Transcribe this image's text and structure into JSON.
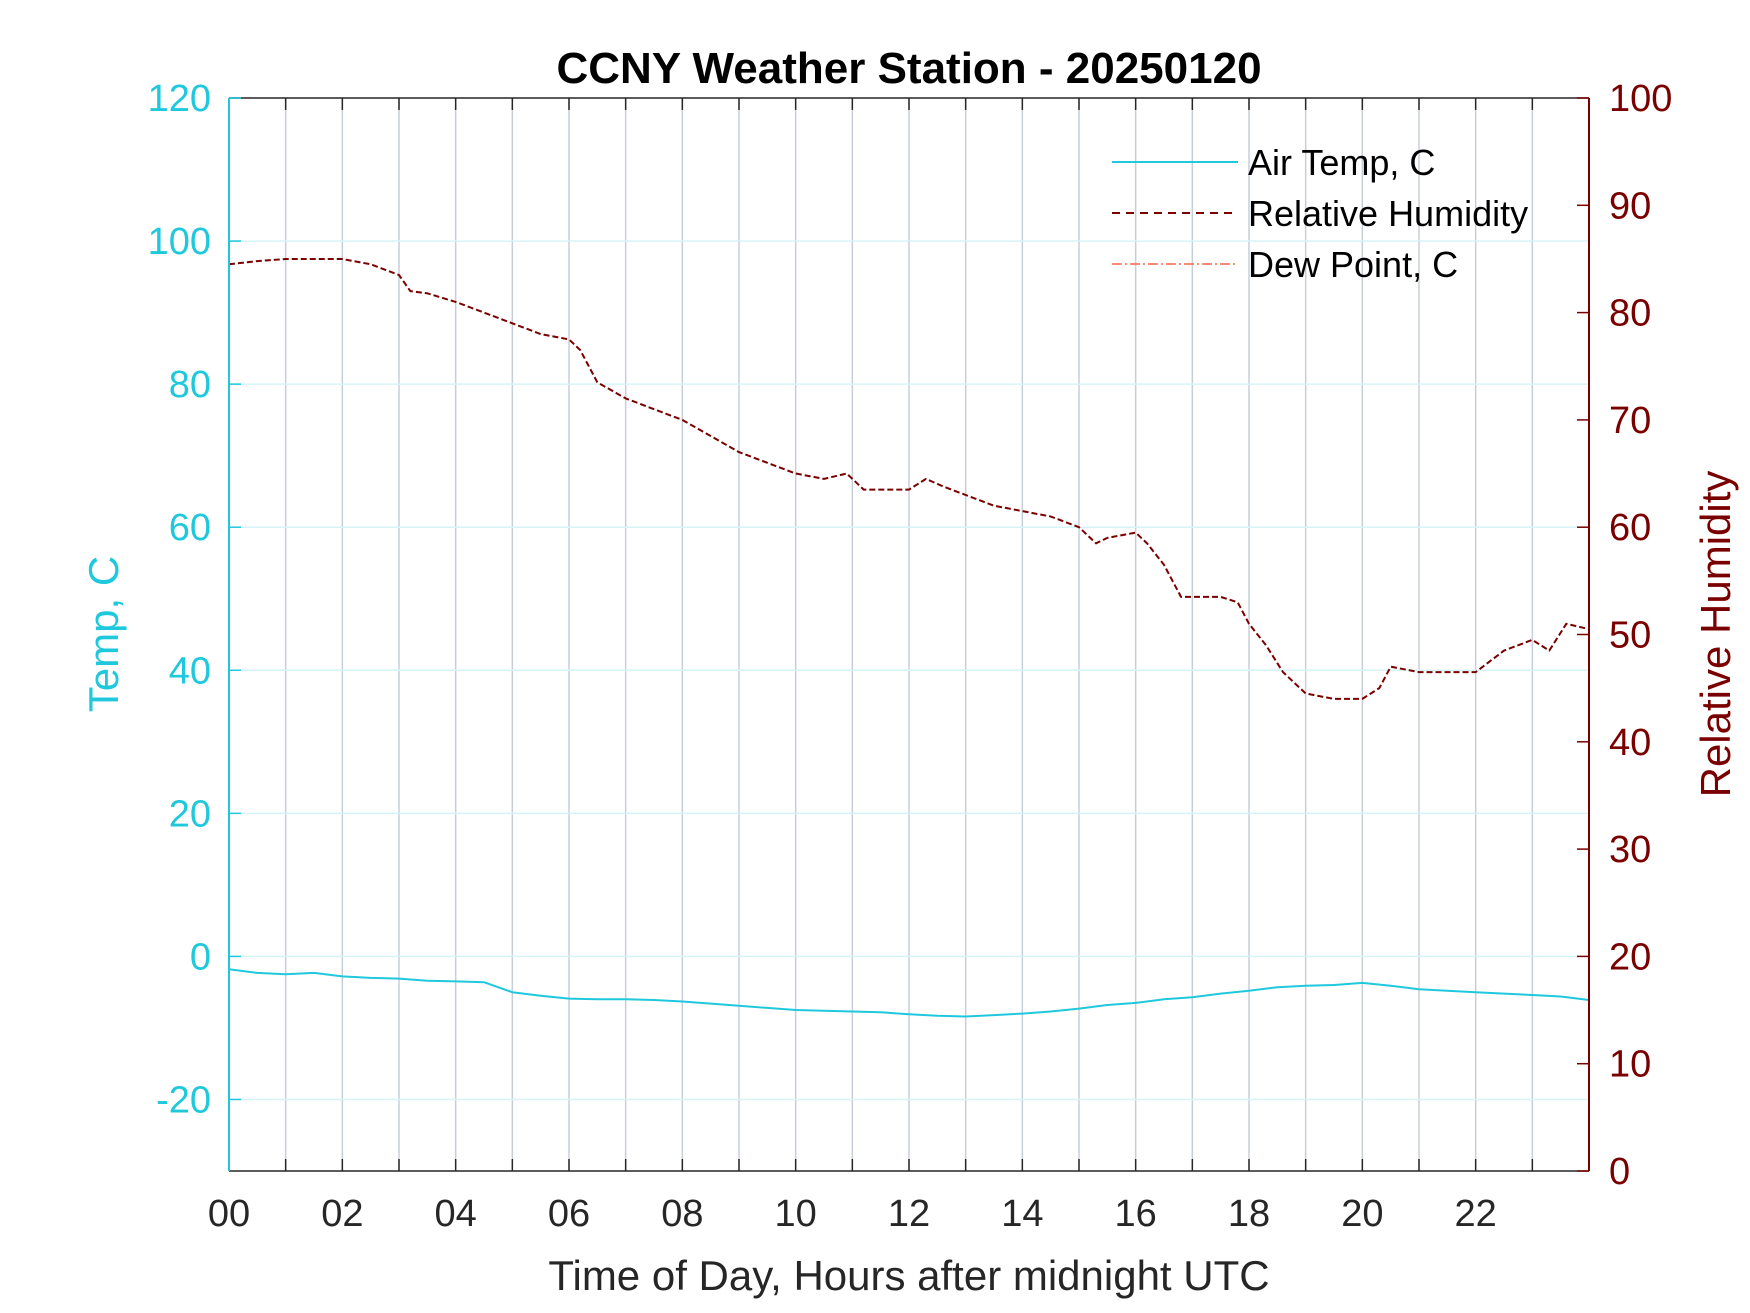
{
  "chart_data": {
    "type": "line",
    "title": "CCNY Weather Station - 20250120",
    "xlabel": "Time of Day, Hours after midnight UTC",
    "ylabel_left": "Temp, C",
    "ylabel_right": "Relative Humidity",
    "xlim": [
      0,
      24
    ],
    "ylim_left": [
      -30,
      120
    ],
    "ylim_right": [
      0,
      100
    ],
    "x_ticks": [
      0,
      2,
      4,
      6,
      8,
      10,
      12,
      14,
      16,
      18,
      20,
      22
    ],
    "x_tick_labels": [
      "00",
      "02",
      "04",
      "06",
      "08",
      "10",
      "12",
      "14",
      "16",
      "18",
      "20",
      "22"
    ],
    "y_left_ticks": [
      -20,
      0,
      20,
      40,
      60,
      80,
      100,
      120
    ],
    "y_left_tick_labels": [
      "-20",
      "0",
      "20",
      "40",
      "60",
      "80",
      "100",
      "120"
    ],
    "y_right_ticks": [
      0,
      10,
      20,
      30,
      40,
      50,
      60,
      70,
      80,
      90,
      100
    ],
    "y_right_tick_labels": [
      "0",
      "10",
      "20",
      "30",
      "40",
      "50",
      "60",
      "70",
      "80",
      "90",
      "100"
    ],
    "grid": true,
    "legend_position": "top-right",
    "colors": {
      "temp": "#1fc8dc",
      "humidity": "#7a0000",
      "dewpoint": "#ff6347",
      "grid_vertical": "#c8ced8",
      "grid_horizontal": "#d6f4f8",
      "axis": "#262626"
    },
    "series": [
      {
        "name": "Air Temp, C",
        "axis": "left",
        "style": "solid",
        "x": [
          0,
          0.5,
          1,
          1.5,
          2,
          2.5,
          3,
          3.5,
          4,
          4.5,
          5,
          5.5,
          6,
          6.5,
          7,
          7.5,
          8,
          8.5,
          9,
          9.5,
          10,
          10.5,
          11,
          11.5,
          12,
          12.5,
          13,
          13.5,
          14,
          14.5,
          15,
          15.5,
          16,
          16.5,
          17,
          17.5,
          18,
          18.5,
          19,
          19.5,
          20,
          20.5,
          21,
          21.5,
          22,
          22.5,
          23,
          23.5,
          24
        ],
        "values": [
          -1.8,
          -2.3,
          -2.5,
          -2.3,
          -2.8,
          -3.0,
          -3.1,
          -3.4,
          -3.5,
          -3.6,
          -5.0,
          -5.5,
          -5.9,
          -6.0,
          -6.0,
          -6.1,
          -6.3,
          -6.6,
          -6.9,
          -7.2,
          -7.5,
          -7.6,
          -7.7,
          -7.8,
          -8.1,
          -8.3,
          -8.4,
          -8.2,
          -8.0,
          -7.7,
          -7.3,
          -6.8,
          -6.5,
          -6.0,
          -5.7,
          -5.2,
          -4.8,
          -4.3,
          -4.1,
          -4.0,
          -3.7,
          -4.1,
          -4.6,
          -4.8,
          -5.0,
          -5.2,
          -5.4,
          -5.6,
          -6.1
        ]
      },
      {
        "name": "Relative Humidity",
        "axis": "right",
        "style": "dashed",
        "x": [
          0,
          0.5,
          1,
          1.5,
          2,
          2.5,
          3,
          3.2,
          3.5,
          4,
          4.5,
          5,
          5.5,
          6,
          6.2,
          6.5,
          7,
          7.5,
          8,
          8.5,
          9,
          9.5,
          10,
          10.5,
          10.9,
          11.2,
          11.5,
          12,
          12.3,
          12.6,
          13,
          13.5,
          14,
          14.5,
          15,
          15.3,
          15.5,
          16,
          16.2,
          16.5,
          16.8,
          17,
          17.5,
          17.8,
          18,
          18.3,
          18.6,
          19,
          19.5,
          20,
          20.3,
          20.5,
          21,
          21.5,
          22,
          22.5,
          23,
          23.3,
          23.6,
          24
        ],
        "values": [
          84.5,
          84.8,
          85,
          85,
          85,
          84.5,
          83.5,
          82,
          81.8,
          81,
          80,
          79,
          78,
          77.5,
          76.5,
          73.5,
          72,
          71,
          70,
          68.5,
          67,
          66,
          65,
          64.5,
          65,
          63.5,
          63.5,
          63.5,
          64.5,
          63.8,
          63,
          62,
          61.5,
          61,
          60,
          58.5,
          59,
          59.5,
          58.5,
          56.5,
          53.5,
          53.5,
          53.5,
          53,
          51,
          49,
          46.5,
          44.5,
          44,
          44,
          45,
          47,
          46.5,
          46.5,
          46.5,
          48.5,
          49.5,
          48.5,
          51,
          50.5
        ]
      },
      {
        "name": "Dew Point, C",
        "axis": "left",
        "style": "dashdot",
        "x": [],
        "values": []
      }
    ]
  }
}
